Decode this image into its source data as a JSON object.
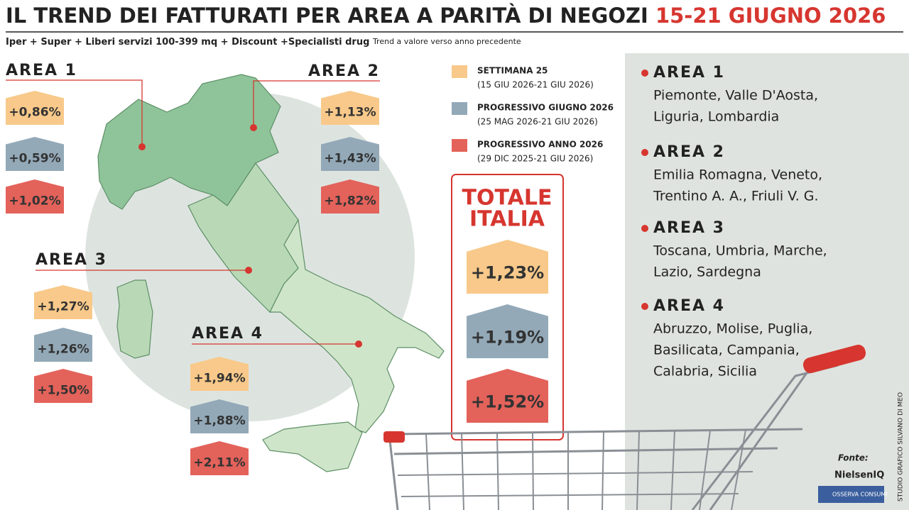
{
  "header": {
    "title": "IL TREND DEI FATTURATI PER AREA A PARITÀ DI NEGOZI",
    "title_highlight": "15-21 GIUGNO 2026",
    "subtitle": "Iper + Super + Liberi servizi 100-399 mq + Discount +Specialisti drug",
    "note": "Trend a valore verso anno precedente"
  },
  "legend": [
    {
      "label": "SETTIMANA 25",
      "period": "(15 GIU 2026-21 GIU 2026)",
      "color": "#f8c98a"
    },
    {
      "label": "PROGRESSIVO GIUGNO 2026",
      "period": "(25 MAG 2026-21 GIU 2026)",
      "color": "#93a9b8"
    },
    {
      "label": "PROGRESSIVO ANNO 2026",
      "period": "(29 DIC 2025-21 GIU 2026)",
      "color": "#e3625a"
    }
  ],
  "areas": [
    {
      "name": "AREA 1",
      "values": [
        "+0,86%",
        "+0,59%",
        "+1,02%"
      ],
      "regions": [
        "Piemonte, Valle D'Aosta,",
        "Liguria, Lombardia"
      ]
    },
    {
      "name": "AREA 2",
      "values": [
        "+1,13%",
        "+1,43%",
        "+1,82%"
      ],
      "regions": [
        "Emilia Romagna, Veneto,",
        "Trentino A. A., Friuli V. G."
      ]
    },
    {
      "name": "AREA 3",
      "values": [
        "+1,27%",
        "+1,26%",
        "+1,50%"
      ],
      "regions": [
        "Toscana, Umbria, Marche,",
        "Lazio, Sardegna"
      ]
    },
    {
      "name": "AREA 4",
      "values": [
        "+1,94%",
        "+1,88%",
        "+2,11%"
      ],
      "regions": [
        "Abruzzo, Molise, Puglia,",
        "Basilicata, Campania,",
        "Calabria, Sicilia"
      ]
    }
  ],
  "total": {
    "title_lines": [
      "TOTALE",
      "ITALIA"
    ],
    "values": [
      "+1,23%",
      "+1,19%",
      "+1,52%"
    ]
  },
  "source": {
    "label": "Fonte:",
    "logos": [
      "NielsenIQ",
      "OSSERVA CONSUMI"
    ]
  },
  "credit": "STUDIO GRAFICO SILVANO DI MEO"
}
